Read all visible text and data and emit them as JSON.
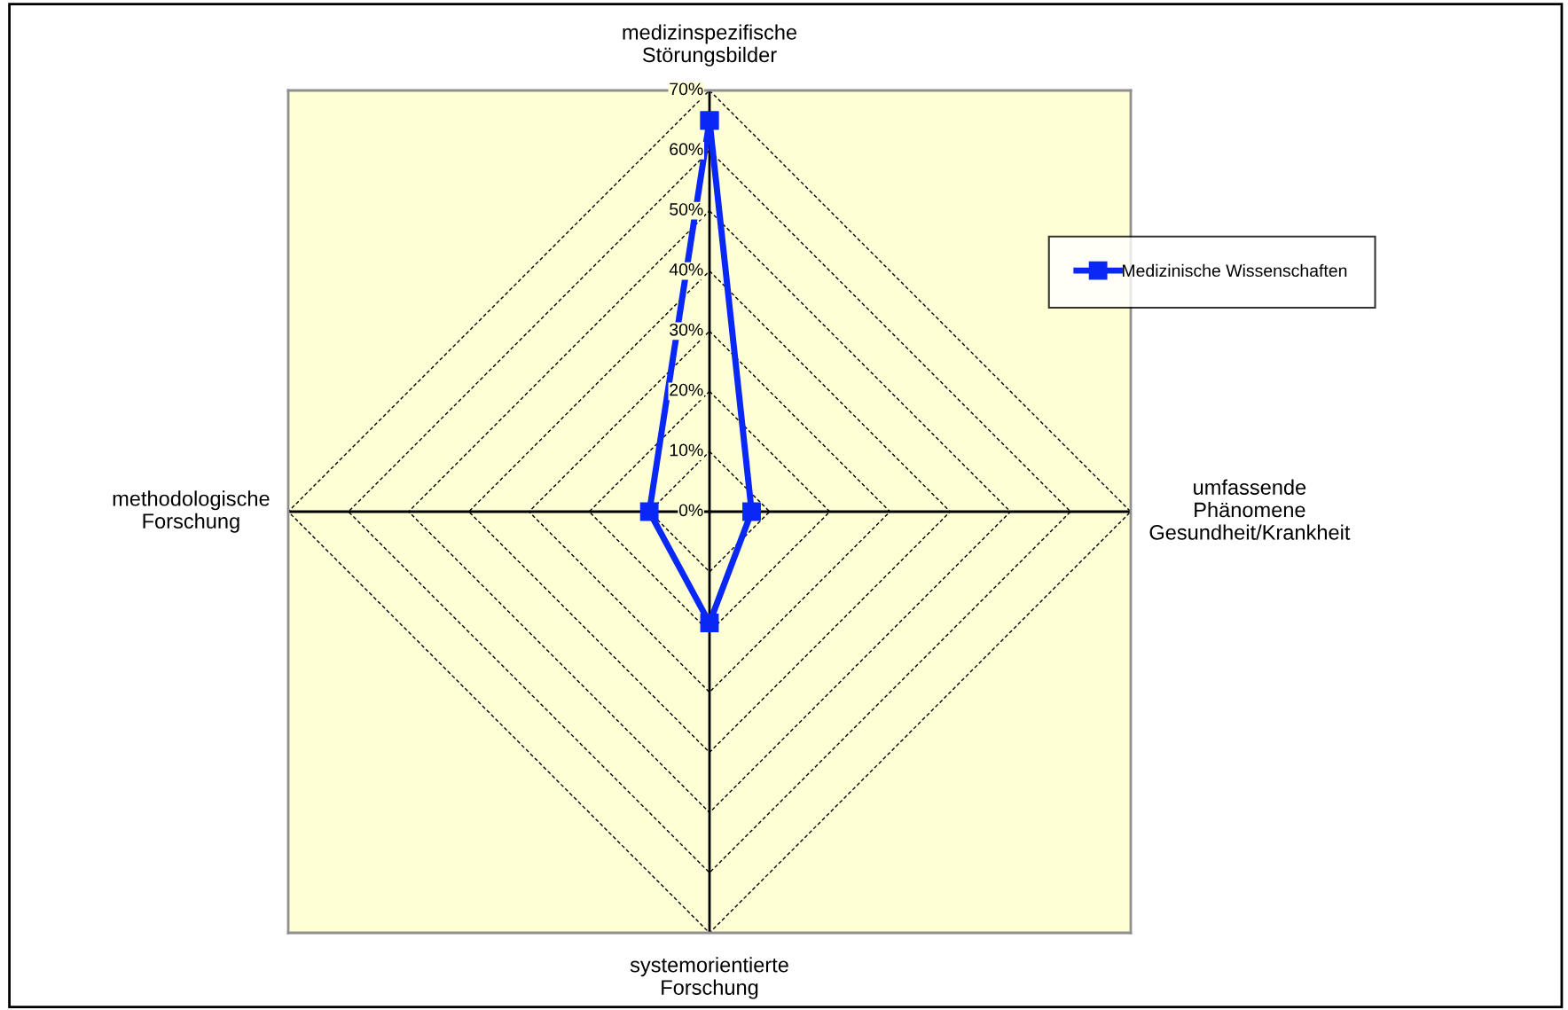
{
  "chart_data": {
    "type": "radar",
    "categories": [
      "medizinspezifische\nStörungsbilder",
      "umfassende\nPhänomene\nGesundheit/Krankheit",
      "systemorientierte\nForschung",
      "methodologische\nForschung"
    ],
    "series": [
      {
        "name": "Medizinische Wissenschaften",
        "color": "#0a28f5",
        "values": [
          65,
          7,
          18.5,
          10
        ]
      }
    ],
    "ylim": [
      0,
      70
    ],
    "yticks": [
      {
        "value": 0,
        "label": "0%"
      },
      {
        "value": 10,
        "label": "10%"
      },
      {
        "value": 20,
        "label": "20%"
      },
      {
        "value": 30,
        "label": "30%"
      },
      {
        "value": 40,
        "label": "40%"
      },
      {
        "value": 50,
        "label": "50%"
      },
      {
        "value": 60,
        "label": "60%"
      },
      {
        "value": 70,
        "label": "70%"
      }
    ],
    "grid": true,
    "legend": "top right",
    "marker": "square",
    "line_style": "solid"
  }
}
